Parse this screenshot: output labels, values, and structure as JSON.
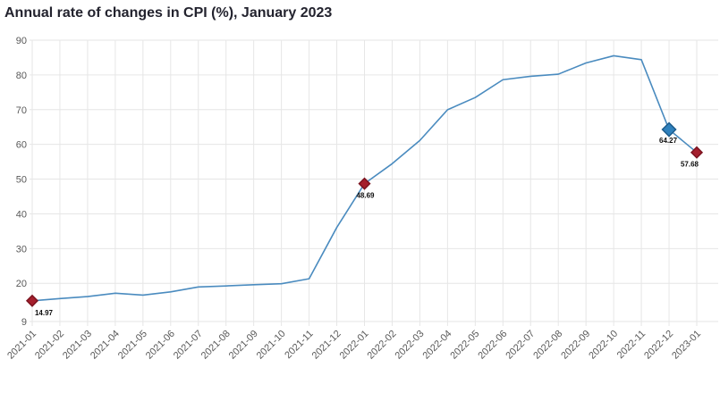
{
  "chart_data": {
    "type": "line",
    "title": "Annual rate of changes in CPI (%), January 2023",
    "xlabel": "",
    "ylabel": "",
    "categories": [
      "2021-01",
      "2021-02",
      "2021-03",
      "2021-04",
      "2021-05",
      "2021-06",
      "2021-07",
      "2021-08",
      "2021-09",
      "2021-10",
      "2021-11",
      "2021-12",
      "2022-01",
      "2022-02",
      "2022-03",
      "2022-04",
      "2022-05",
      "2022-06",
      "2022-07",
      "2022-08",
      "2022-09",
      "2022-10",
      "2022-11",
      "2022-12",
      "2023-01"
    ],
    "series": [
      {
        "name": "Annual rate of change in CPI (%)",
        "values": [
          14.97,
          15.61,
          16.19,
          17.14,
          16.59,
          17.53,
          18.95,
          19.25,
          19.58,
          19.89,
          21.31,
          36.08,
          48.69,
          54.44,
          61.14,
          69.97,
          73.5,
          78.62,
          79.6,
          80.21,
          83.45,
          85.51,
          84.39,
          64.27,
          57.68
        ]
      }
    ],
    "ylim": [
      9,
      90
    ],
    "yticks": [
      9,
      20,
      30,
      40,
      50,
      60,
      70,
      80,
      90
    ],
    "grid": true,
    "legend": "none",
    "x_tick_rotation": -45,
    "labeled_points": [
      {
        "x": "2021-01",
        "value": 14.97,
        "label": "14.97",
        "marker": "red-diamond"
      },
      {
        "x": "2022-01",
        "value": 48.69,
        "label": "48.69",
        "marker": "red-diamond"
      },
      {
        "x": "2022-12",
        "value": 64.27,
        "label": "64.27",
        "marker": "blue-diamond"
      },
      {
        "x": "2023-01",
        "value": 57.68,
        "label": "57.68",
        "marker": "red-diamond"
      }
    ],
    "colors": {
      "line": "#4a8bbf",
      "red_marker_fill": "#a51f2d",
      "red_marker_border": "#7c1420",
      "blue_marker_fill": "#2f81bd",
      "blue_marker_border": "#1e5d8d",
      "gridline": "#e6e6e6",
      "axis_label": "#595959",
      "title": "#23232e",
      "data_label": "#0d0d0d",
      "background": "#ffffff"
    }
  }
}
